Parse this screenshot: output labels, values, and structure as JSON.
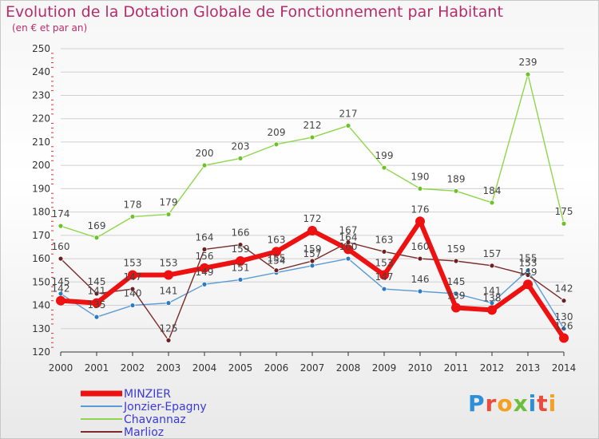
{
  "title": "Evolution de la Dotation Globale de Fonctionnement par Habitant",
  "subtitle": "(en € et par an)",
  "logo": {
    "text": "Proxiti"
  },
  "colors": {
    "title": "#b52d6a",
    "grid": "#d0d0d0",
    "axis": "#333333"
  },
  "chart_data": {
    "type": "line",
    "title": "Evolution de la Dotation Globale de Fonctionnement par Habitant",
    "subtitle": "(en € et par an)",
    "xlabel": "",
    "ylabel": "",
    "ylim": [
      120,
      250
    ],
    "yticks": [
      120,
      130,
      140,
      150,
      160,
      170,
      180,
      190,
      200,
      210,
      220,
      230,
      240,
      250
    ],
    "grid": true,
    "legend_position": "bottom-left",
    "x": [
      "2000",
      "2001",
      "2002",
      "2003",
      "2004",
      "2005",
      "2006",
      "2007",
      "2008",
      "2009",
      "2010",
      "2011",
      "2012",
      "2013",
      "2014"
    ],
    "series": [
      {
        "name": "Chavannaz",
        "color": "#8ed64a",
        "marker": "#6cc22a",
        "width": 1.4,
        "values": [
          174,
          169,
          178,
          179,
          200,
          203,
          209,
          212,
          217,
          199,
          190,
          189,
          184,
          239,
          175
        ],
        "labels": [
          "174",
          "169",
          "178",
          "179",
          "200",
          "203",
          "209",
          "212",
          "217",
          "199",
          "190",
          "189",
          "184",
          "239",
          "175"
        ]
      },
      {
        "name": "Jonzier-Epagny",
        "color": "#5b9bd5",
        "marker": "#2b7bc4",
        "width": 1.4,
        "values": [
          145,
          135,
          140,
          141,
          149,
          151,
          154,
          157,
          160,
          147,
          146,
          145,
          141,
          155,
          130
        ],
        "labels": [
          "145",
          "135",
          "140",
          "141",
          "149",
          "151",
          "154",
          "157",
          "160",
          "147",
          "146",
          "145",
          "141",
          "155",
          "130"
        ]
      },
      {
        "name": "Marlioz",
        "color": "#7a2a2a",
        "marker": "#6b1f1f",
        "width": 1.4,
        "values": [
          160,
          145,
          147,
          125,
          164,
          166,
          155,
          159,
          167,
          163,
          160,
          159,
          157,
          153,
          142
        ],
        "labels": [
          "160",
          "145",
          "147",
          "125",
          "164",
          "166",
          "155",
          "159",
          "167",
          "163",
          "160",
          "159",
          "157",
          "153",
          "142"
        ]
      },
      {
        "name": "MINZIER",
        "color": "#ee1111",
        "marker": "#ee1111",
        "width": 6,
        "values": [
          142,
          141,
          153,
          153,
          156,
          159,
          163,
          172,
          164,
          153,
          176,
          139,
          138,
          149,
          126
        ],
        "labels": [
          "142",
          "141",
          "153",
          "153",
          "156",
          "159",
          "163",
          "172",
          "164",
          "153",
          "176",
          "139",
          "138",
          "149",
          "126"
        ]
      }
    ],
    "legend": [
      {
        "name": "MINZIER",
        "color": "#ee1111",
        "text_color": "#3a3ad4"
      },
      {
        "name": "Jonzier-Epagny",
        "color": "#5b9bd5",
        "text_color": "#3a3ad4"
      },
      {
        "name": "Chavannaz",
        "color": "#8ed64a",
        "text_color": "#3a3ad4"
      },
      {
        "name": "Marlioz",
        "color": "#7a2a2a",
        "text_color": "#3a3ad4"
      }
    ]
  }
}
